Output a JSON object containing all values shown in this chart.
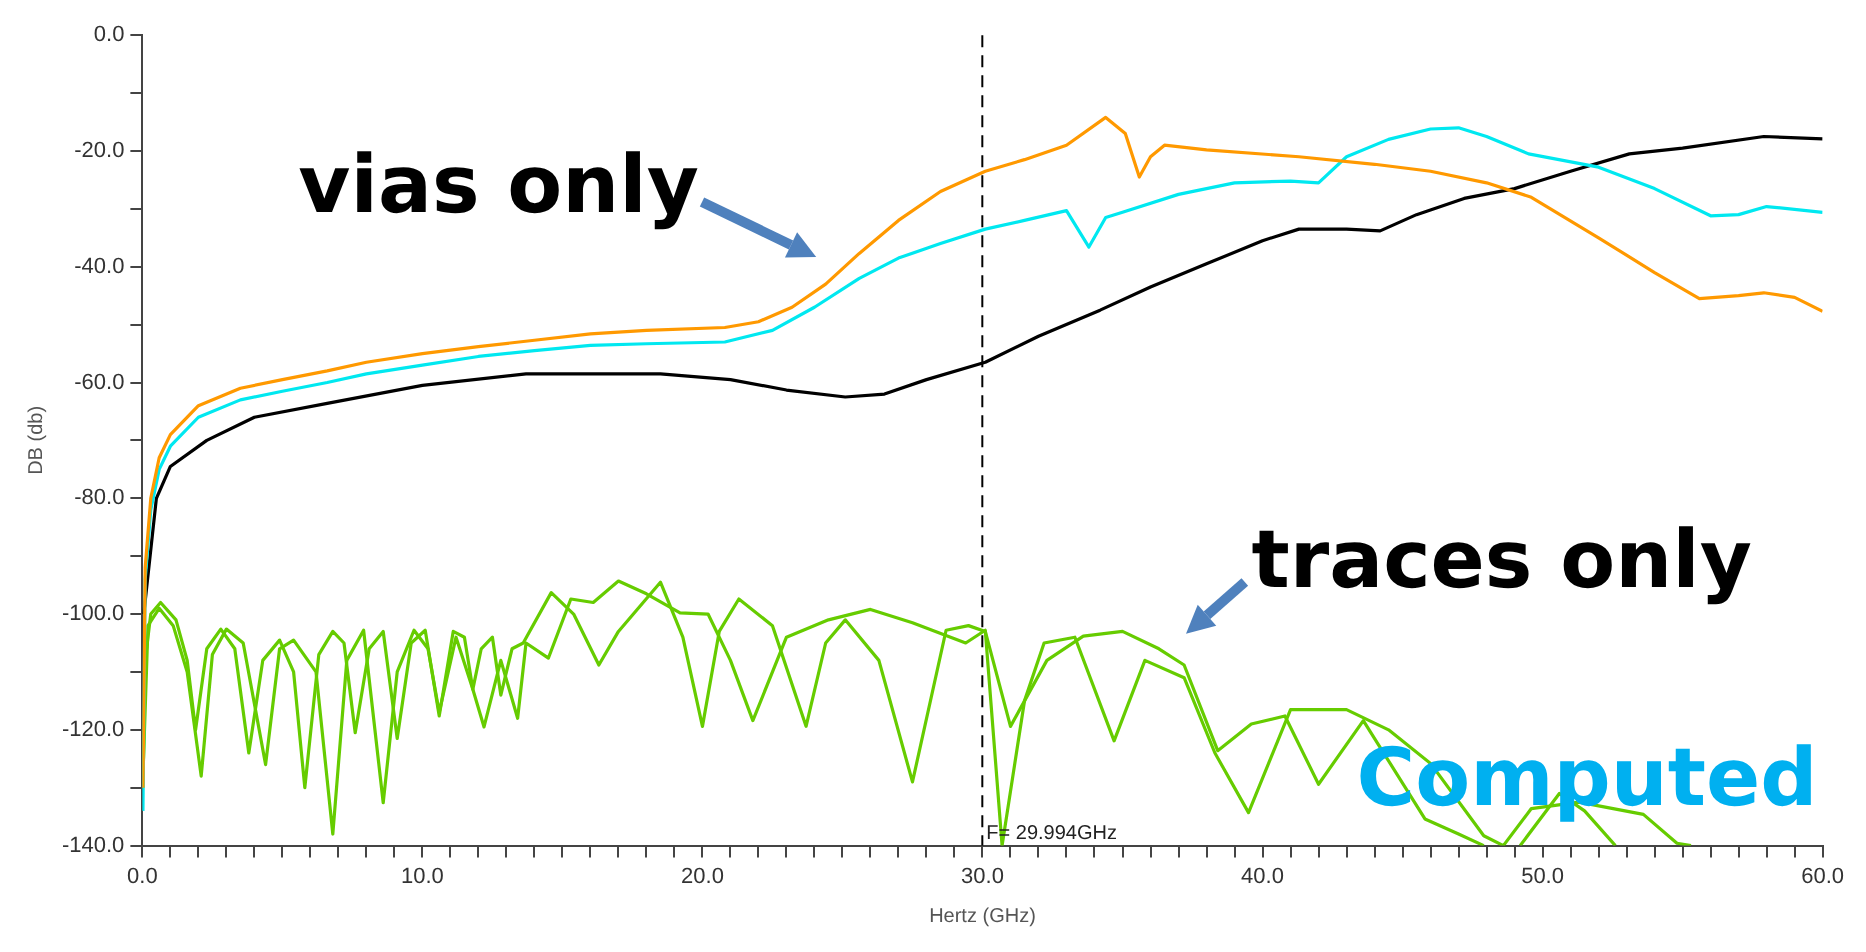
{
  "chart_data": {
    "type": "line",
    "xlabel": "Hertz (GHz)",
    "ylabel": "DB (db)",
    "xlim": [
      0,
      60
    ],
    "ylim": [
      -140,
      0
    ],
    "xticks": [
      {
        "value": 0,
        "label": "0.0"
      },
      {
        "value": 1,
        "label": null
      },
      {
        "value": 2,
        "label": null
      },
      {
        "value": 3,
        "label": null
      },
      {
        "value": 4,
        "label": null
      },
      {
        "value": 5,
        "label": null
      },
      {
        "value": 6,
        "label": null
      },
      {
        "value": 7,
        "label": null
      },
      {
        "value": 8,
        "label": null
      },
      {
        "value": 9,
        "label": null
      },
      {
        "value": 10,
        "label": "10.0"
      },
      {
        "value": 11,
        "label": null
      },
      {
        "value": 12,
        "label": null
      },
      {
        "value": 13,
        "label": null
      },
      {
        "value": 14,
        "label": null
      },
      {
        "value": 15,
        "label": null
      },
      {
        "value": 16,
        "label": null
      },
      {
        "value": 17,
        "label": null
      },
      {
        "value": 18,
        "label": null
      },
      {
        "value": 19,
        "label": null
      },
      {
        "value": 20,
        "label": "20.0"
      },
      {
        "value": 21,
        "label": null
      },
      {
        "value": 22,
        "label": null
      },
      {
        "value": 23,
        "label": null
      },
      {
        "value": 24,
        "label": null
      },
      {
        "value": 25,
        "label": null
      },
      {
        "value": 26,
        "label": null
      },
      {
        "value": 27,
        "label": null
      },
      {
        "value": 28,
        "label": null
      },
      {
        "value": 29,
        "label": null
      },
      {
        "value": 30,
        "label": "30.0"
      },
      {
        "value": 31,
        "label": null
      },
      {
        "value": 32,
        "label": null
      },
      {
        "value": 33,
        "label": null
      },
      {
        "value": 34,
        "label": null
      },
      {
        "value": 35,
        "label": null
      },
      {
        "value": 36,
        "label": null
      },
      {
        "value": 37,
        "label": null
      },
      {
        "value": 38,
        "label": null
      },
      {
        "value": 39,
        "label": null
      },
      {
        "value": 40,
        "label": "40.0"
      },
      {
        "value": 41,
        "label": null
      },
      {
        "value": 42,
        "label": null
      },
      {
        "value": 43,
        "label": null
      },
      {
        "value": 44,
        "label": null
      },
      {
        "value": 45,
        "label": null
      },
      {
        "value": 46,
        "label": null
      },
      {
        "value": 47,
        "label": null
      },
      {
        "value": 48,
        "label": null
      },
      {
        "value": 49,
        "label": null
      },
      {
        "value": 50,
        "label": "50.0"
      },
      {
        "value": 51,
        "label": null
      },
      {
        "value": 52,
        "label": null
      },
      {
        "value": 53,
        "label": null
      },
      {
        "value": 54,
        "label": null
      },
      {
        "value": 55,
        "label": null
      },
      {
        "value": 56,
        "label": null
      },
      {
        "value": 57,
        "label": null
      },
      {
        "value": 58,
        "label": null
      },
      {
        "value": 59,
        "label": null
      },
      {
        "value": 60,
        "label": "60.0"
      }
    ],
    "yticks": [
      {
        "value": -140,
        "label": "-140.0"
      },
      {
        "value": -130,
        "label": null
      },
      {
        "value": -120,
        "label": "-120.0"
      },
      {
        "value": -110,
        "label": null
      },
      {
        "value": -100,
        "label": "-100.0"
      },
      {
        "value": -90,
        "label": null
      },
      {
        "value": -80,
        "label": "-80.0"
      },
      {
        "value": -70,
        "label": null
      },
      {
        "value": -60,
        "label": "-60.0"
      },
      {
        "value": -50,
        "label": null
      },
      {
        "value": -40,
        "label": "-40.0"
      },
      {
        "value": -30,
        "label": null
      },
      {
        "value": -20,
        "label": "-20.0"
      },
      {
        "value": -10,
        "label": null
      },
      {
        "value": 0,
        "label": "0.0"
      }
    ],
    "marker": "none",
    "series": [
      {
        "color": "#ff9900",
        "x": [
          0.02,
          0.1,
          0.3,
          0.6,
          1,
          2,
          3.5,
          5,
          6.6,
          8,
          10,
          12,
          14,
          16,
          18,
          20.8,
          22,
          23.2,
          24.4,
          25.6,
          27,
          28.5,
          30.1,
          31.5,
          33,
          34.4,
          35.1,
          35.6,
          36,
          36.5,
          38,
          41.3,
          44,
          46,
          48,
          49.6,
          52,
          54,
          55.6,
          57,
          57.9,
          59,
          60
        ],
        "values": [
          -130,
          -92,
          -80,
          -73,
          -69,
          -64,
          -61,
          -59.5,
          -58,
          -56.5,
          -55,
          -53.8,
          -52.7,
          -51.6,
          -51,
          -50.5,
          -49.5,
          -47,
          -43,
          -37.7,
          -32,
          -27,
          -23.5,
          -21.5,
          -19,
          -14.2,
          -17,
          -24.5,
          -21,
          -19,
          -19.8,
          -21,
          -22.3,
          -23.5,
          -25.5,
          -28,
          -35,
          -41,
          -45.5,
          -45,
          -44.5,
          -45.3,
          -47.7
        ]
      },
      {
        "color": "#00e8f0",
        "x": [
          0.02,
          0.1,
          0.3,
          0.6,
          1,
          2,
          3.5,
          5,
          6.6,
          8,
          10,
          12,
          14,
          16,
          18,
          20.8,
          22.5,
          24,
          25.6,
          27,
          28.5,
          30.1,
          31.5,
          33,
          33.8,
          34.4,
          35,
          37,
          39,
          41,
          42,
          43,
          44.5,
          46,
          47,
          48,
          49.5,
          52,
          54,
          56,
          57,
          58,
          60
        ],
        "values": [
          -134,
          -94,
          -82,
          -75,
          -71,
          -66,
          -63,
          -61.5,
          -60,
          -58.5,
          -57,
          -55.5,
          -54.5,
          -53.6,
          -53.3,
          -53,
          -51,
          -47,
          -42,
          -38.5,
          -36,
          -33.5,
          -32,
          -30.3,
          -36.6,
          -31.5,
          -30.6,
          -27.5,
          -25.5,
          -25.2,
          -25.5,
          -21,
          -18,
          -16.2,
          -16,
          -17.5,
          -20.5,
          -22.8,
          -26.5,
          -31.2,
          -31,
          -29.6,
          -30.6
        ]
      },
      {
        "color": "#000000",
        "x": [
          0.05,
          0.5,
          1,
          2.3,
          4,
          6.6,
          10,
          13.7,
          18.5,
          21,
          23,
          25.1,
          26.5,
          28,
          30.1,
          32,
          34.2,
          36,
          38,
          40,
          41.3,
          43,
          44.2,
          45.5,
          47.2,
          49,
          51,
          53.1,
          55,
          57.9,
          60
        ],
        "values": [
          -100,
          -80,
          -74.5,
          -70,
          -66,
          -63.6,
          -60.5,
          -58.5,
          -58.5,
          -59.5,
          -61.3,
          -62.5,
          -62,
          -59.5,
          -56.5,
          -52,
          -47.5,
          -43.5,
          -39.5,
          -35.5,
          -33.5,
          -33.5,
          -33.8,
          -31,
          -28.2,
          -26.5,
          -23.5,
          -20.5,
          -19.5,
          -17.5,
          -17.9
        ]
      },
      {
        "color": "#66cc00",
        "x": [
          0.02,
          0.1,
          0.3,
          0.65,
          1.2,
          1.6,
          1.9,
          2.3,
          2.8,
          3.3,
          3.8,
          4.3,
          4.9,
          5.4,
          5.8,
          6.3,
          6.8,
          7.2,
          7.6,
          8.1,
          8.6,
          9.1,
          9.6,
          10.1,
          10.6,
          11.1,
          11.5,
          11.8,
          12.1,
          12.5,
          12.8,
          13.2,
          13.6,
          14.6,
          15.4,
          16.3,
          17,
          18.5,
          19.3,
          20,
          20.6,
          21.3,
          22.5,
          23.7,
          24.4,
          25.1,
          26.3,
          27.5,
          28.7,
          29.5,
          30.1,
          31,
          32.3,
          33.6,
          35,
          36.3,
          37.2,
          38.4,
          39.6,
          40.8,
          42,
          43.6,
          45.8,
          47,
          47.9,
          48.5,
          49.2,
          50.6,
          51.5,
          52.6
        ],
        "values": [
          -130,
          -108,
          -100,
          -98,
          -101,
          -108,
          -120,
          -106,
          -102.6,
          -106,
          -124,
          -108,
          -104.5,
          -110,
          -130,
          -107,
          -103,
          -105,
          -120.5,
          -106,
          -103,
          -121.5,
          -105,
          -102.8,
          -117.6,
          -103,
          -104,
          -113,
          -106,
          -104,
          -114,
          -106,
          -105,
          -96.3,
          -100,
          -108.8,
          -103,
          -94.5,
          -104,
          -119.4,
          -103,
          -97.4,
          -102,
          -119.4,
          -105,
          -101,
          -108,
          -129,
          -102.8,
          -102,
          -103,
          -119.4,
          -108,
          -103.8,
          -103,
          -106,
          -108.8,
          -123.6,
          -119,
          -117.6,
          -129.4,
          -118.4,
          -135.4,
          -138,
          -140,
          null,
          -140,
          -131,
          -134,
          -140
        ]
      },
      {
        "color": "#66cc00",
        "x": [
          0.02,
          0.2,
          0.6,
          1.1,
          1.6,
          2.1,
          2.5,
          3,
          3.6,
          4.4,
          4.9,
          5.4,
          6.2,
          6.8,
          7.3,
          7.9,
          8.6,
          9.1,
          9.7,
          10.2,
          10.6,
          11.2,
          11.8,
          12.2,
          12.8,
          13.4,
          13.7,
          14.5,
          15.3,
          16.1,
          17,
          18,
          19.2,
          20.2,
          21,
          21.8,
          23,
          24.5,
          26,
          27.5,
          29.4,
          30.1,
          30.7,
          31.5,
          32.2,
          33.3,
          34.7,
          35.8,
          37.2,
          38.3,
          39.5,
          41,
          43,
          44.5,
          46,
          47.9,
          48.6,
          49.6,
          51.3,
          53.6,
          54.8,
          55.3
        ],
        "values": [
          -128,
          -102,
          -99,
          -102,
          -110,
          -128,
          -107,
          -102.6,
          -105,
          -126,
          -106,
          -104.5,
          -110,
          -138,
          -108,
          -102.8,
          -132.6,
          -110,
          -102.8,
          -106,
          -117,
          -104,
          -113,
          -119.5,
          -108,
          -118,
          -105,
          -107.6,
          -97.4,
          -98,
          -94.3,
          -96.5,
          -99.8,
          -100,
          -108,
          -118.4,
          -104,
          -101,
          -99.2,
          -101.5,
          -105,
          -102.8,
          -140,
          -115,
          -105,
          -104,
          -121.9,
          -108,
          -111,
          -124,
          -134.3,
          -116.5,
          -116.5,
          -120,
          -125.8,
          -138.3,
          -140,
          -133.6,
          -132.5,
          -134.6,
          -139.6,
          -140
        ]
      }
    ],
    "ref_lines": [
      {
        "axis": "x",
        "value": 29.994,
        "label": "F= 29.994GHz",
        "color": "#000000",
        "line_style": "dashed"
      }
    ],
    "annotations": [
      "vias only",
      "traces only",
      "Computed"
    ]
  }
}
